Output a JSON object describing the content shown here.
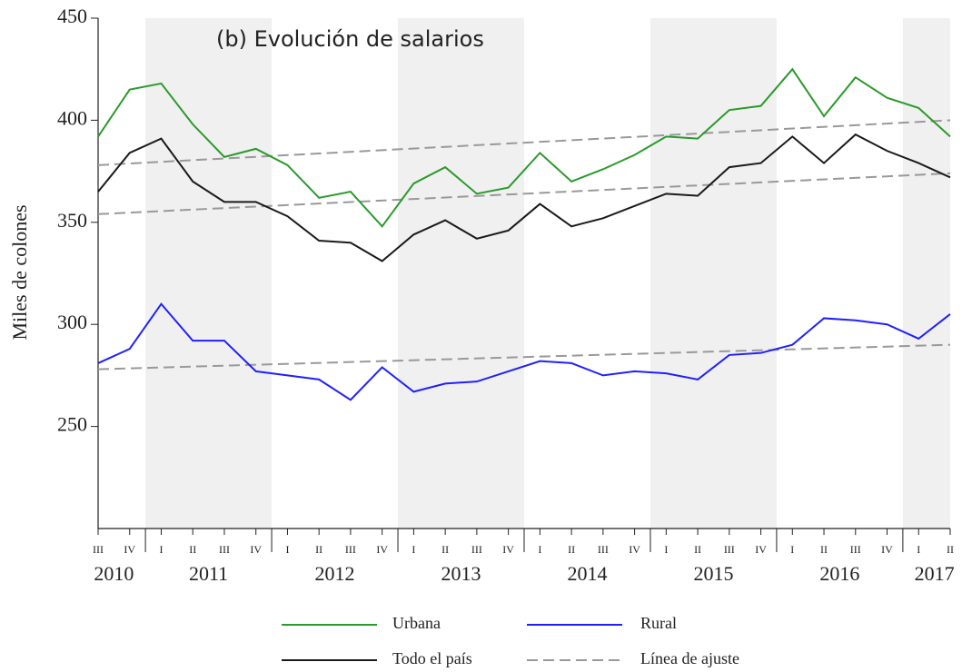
{
  "chart_data": {
    "type": "line",
    "title": "(b) Evolución de salarios",
    "y_label": "Miles de colones",
    "categories": [
      "III",
      "IV",
      "I",
      "II",
      "III",
      "IV",
      "I",
      "II",
      "III",
      "IV",
      "I",
      "II",
      "III",
      "IV",
      "I",
      "II",
      "III",
      "IV",
      "I",
      "II",
      "III",
      "IV",
      "I",
      "II",
      "III",
      "IV",
      "I",
      "II"
    ],
    "years": [
      "2010",
      "2011",
      "2012",
      "2013",
      "2014",
      "2015",
      "2016",
      "2017"
    ],
    "shade_alternate_years": true,
    "ylim": [
      200,
      450
    ],
    "yticks": [
      250,
      300,
      350,
      400,
      450
    ],
    "series": [
      {
        "name": "Urbana",
        "color": "#2a9a2a",
        "values": [
          392,
          415,
          418,
          398,
          382,
          386,
          378,
          362,
          365,
          348,
          369,
          377,
          364,
          367,
          384,
          370,
          376,
          383,
          392,
          391,
          405,
          407,
          425,
          402,
          421,
          411,
          406,
          392
        ]
      },
      {
        "name": "Rural",
        "color": "#2020ff",
        "values": [
          281,
          288,
          310,
          292,
          292,
          277,
          275,
          273,
          263,
          279,
          267,
          271,
          272,
          277,
          282,
          281,
          275,
          277,
          276,
          273,
          285,
          286,
          290,
          303,
          302,
          300,
          293,
          305
        ]
      },
      {
        "name": "Todo el país",
        "color": "#1a1a1a",
        "values": [
          365,
          384,
          391,
          370,
          360,
          360,
          353,
          341,
          340,
          331,
          344,
          351,
          342,
          346,
          359,
          348,
          352,
          358,
          364,
          363,
          377,
          379,
          392,
          379,
          393,
          385,
          379,
          372
        ]
      }
    ],
    "fit": {
      "name": "Línea de ajuste",
      "color": "#999999",
      "lines": [
        [
          378,
          400
        ],
        [
          354,
          374
        ],
        [
          278,
          290
        ]
      ]
    }
  }
}
